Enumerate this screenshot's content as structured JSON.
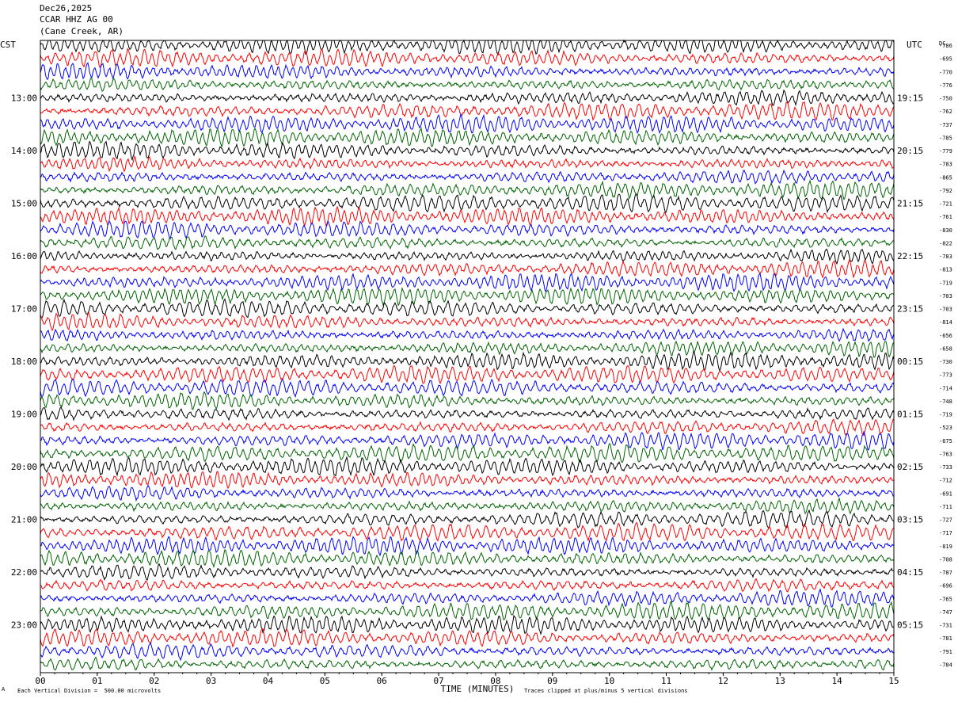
{
  "header": {
    "date": "Dec26,2025",
    "station": "CCAR HHZ AG 00",
    "location": "(Cane Creek, AR)"
  },
  "left_timezone": "CST",
  "right_timezone": "UTC",
  "dc_label": "DC",
  "footer": {
    "scale_note": "Each Vertical Division =  500.00 microvolts",
    "clip_note": "Traces clipped at plus/minus 5 vertical divisions",
    "corner_mark": "A"
  },
  "colors": {
    "cycle": [
      "#000000",
      "#ff0000",
      "#0000ff",
      "#006400"
    ],
    "frame": "#000000"
  },
  "chart_data": {
    "type": "line",
    "description_kind": "helicorder",
    "xlabel": "TIME (MINUTES)",
    "x_ticks": [
      "00",
      "01",
      "02",
      "03",
      "04",
      "05",
      "06",
      "07",
      "08",
      "09",
      "10",
      "11",
      "12",
      "13",
      "14",
      "15"
    ],
    "xlim": [
      0,
      15
    ],
    "left_hour_labels": [
      "13:00",
      "14:00",
      "15:00",
      "16:00",
      "17:00",
      "18:00",
      "19:00",
      "20:00",
      "21:00",
      "22:00",
      "23:00"
    ],
    "right_hour_labels": [
      "19:15",
      "20:15",
      "21:15",
      "22:15",
      "23:15",
      "00:15",
      "01:15",
      "02:15",
      "03:15",
      "04:15",
      "05:15"
    ],
    "trace_count": 48,
    "dc_offsets": [
      -786,
      -695,
      -770,
      -776,
      -750,
      -762,
      -737,
      -785,
      -779,
      -783,
      -865,
      -792,
      -721,
      -761,
      -830,
      -822,
      -783,
      -813,
      -719,
      -703,
      -703,
      -814,
      -656,
      -658,
      -730,
      -773,
      -714,
      -748,
      -719,
      -523,
      -675,
      -763,
      -733,
      -712,
      -691,
      -711,
      -727,
      -717,
      -819,
      -708,
      -787,
      -696,
      -765,
      -747,
      -731,
      -781,
      -791,
      -784
    ]
  }
}
